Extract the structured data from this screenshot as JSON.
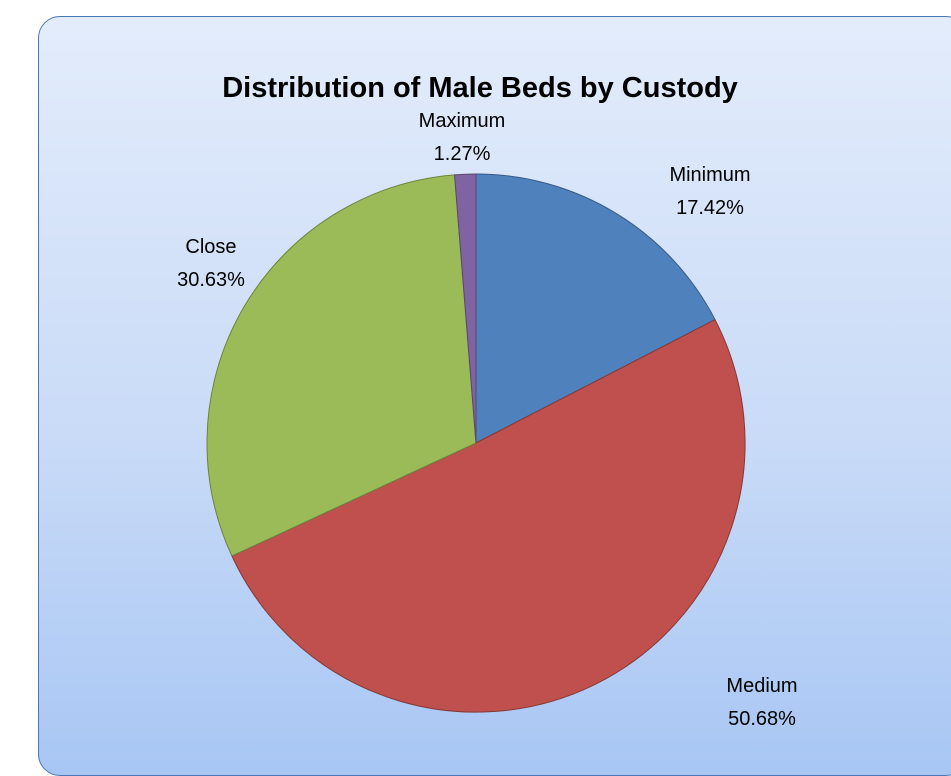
{
  "chart_data": {
    "type": "pie",
    "title": "Distribution of Male Beds by Custody",
    "start_angle_deg": 0,
    "direction": "clockwise",
    "slices": [
      {
        "name": "Minimum",
        "value": 17.42,
        "label": "17.42%",
        "color": "#4f81bd"
      },
      {
        "name": "Medium",
        "value": 50.68,
        "label": "50.68%",
        "color": "#c0504d"
      },
      {
        "name": "Close",
        "value": 30.63,
        "label": "30.63%",
        "color": "#9bbb59"
      },
      {
        "name": "Maximum",
        "value": 1.27,
        "label": "1.27%",
        "color": "#8064a2"
      }
    ]
  }
}
